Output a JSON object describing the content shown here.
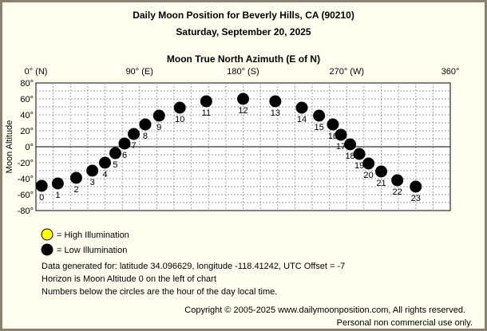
{
  "title": "Daily Moon Position for Beverly Hills, CA (90210)",
  "date": "Saturday, September 20, 2025",
  "chart_data": {
    "type": "scatter",
    "title": "Moon True North Azimuth (E of N)",
    "ylabel": "Moon Altitude",
    "xlim": [
      0,
      360
    ],
    "ylim": [
      -80,
      80
    ],
    "x_ticks": [
      {
        "value": 0,
        "label": "0° (N)"
      },
      {
        "value": 90,
        "label": "90° (E)"
      },
      {
        "value": 180,
        "label": "180° (S)"
      },
      {
        "value": 270,
        "label": "270° (W)"
      },
      {
        "value": 360,
        "label": "360°"
      }
    ],
    "y_ticks": [
      {
        "value": 80,
        "label": "80°"
      },
      {
        "value": 60,
        "label": "60°"
      },
      {
        "value": 40,
        "label": "40°"
      },
      {
        "value": 20,
        "label": "20°"
      },
      {
        "value": 0,
        "label": "0°"
      },
      {
        "value": -20,
        "label": "-20°"
      },
      {
        "value": -40,
        "label": "-40°"
      },
      {
        "value": -60,
        "label": "-60°"
      },
      {
        "value": -80,
        "label": "-80°"
      }
    ],
    "grid": true,
    "points": [
      {
        "hour": "0",
        "azimuth": 5,
        "altitude": -49
      },
      {
        "hour": "1",
        "azimuth": 19,
        "altitude": -46
      },
      {
        "hour": "2",
        "azimuth": 35,
        "altitude": -39
      },
      {
        "hour": "3",
        "azimuth": 49,
        "altitude": -30
      },
      {
        "hour": "4",
        "azimuth": 60,
        "altitude": -20
      },
      {
        "hour": "5",
        "azimuth": 69,
        "altitude": -8
      },
      {
        "hour": "6",
        "azimuth": 77,
        "altitude": 4
      },
      {
        "hour": "7",
        "azimuth": 85,
        "altitude": 16
      },
      {
        "hour": "8",
        "azimuth": 95,
        "altitude": 28
      },
      {
        "hour": "9",
        "azimuth": 107,
        "altitude": 39
      },
      {
        "hour": "10",
        "azimuth": 125,
        "altitude": 49
      },
      {
        "hour": "11",
        "azimuth": 148,
        "altitude": 57
      },
      {
        "hour": "12",
        "azimuth": 180,
        "altitude": 60
      },
      {
        "hour": "13",
        "azimuth": 208,
        "altitude": 57
      },
      {
        "hour": "14",
        "azimuth": 231,
        "altitude": 49
      },
      {
        "hour": "15",
        "azimuth": 246,
        "altitude": 39
      },
      {
        "hour": "16",
        "azimuth": 258,
        "altitude": 28
      },
      {
        "hour": "17",
        "azimuth": 265,
        "altitude": 15
      },
      {
        "hour": "18",
        "azimuth": 273,
        "altitude": 3
      },
      {
        "hour": "19",
        "azimuth": 281,
        "altitude": -9
      },
      {
        "hour": "20",
        "azimuth": 289,
        "altitude": -21
      },
      {
        "hour": "21",
        "azimuth": 300,
        "altitude": -31
      },
      {
        "hour": "22",
        "azimuth": 314,
        "altitude": -42
      },
      {
        "hour": "23",
        "azimuth": 330,
        "altitude": -50
      }
    ],
    "illumination": "low"
  },
  "legend": {
    "high": "= High Illumination",
    "low": "= Low Illumination",
    "high_color": "#ffff00",
    "low_color": "#000000"
  },
  "info": {
    "line1": "Data generated for: latitude 34.096629, longitude -118.41242, UTC Offset = -7",
    "line2": "Horizon is Moon Altitude 0 on the left of chart",
    "line3": "Numbers below the circles are the hour of the day local time."
  },
  "footer": {
    "copyright": "Copyright © 2005-2025 www.dailymoonposition.com, All rights reserved.",
    "note": "Personal non commercial use only."
  }
}
